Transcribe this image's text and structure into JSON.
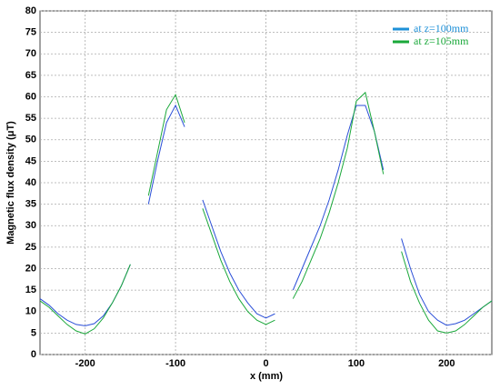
{
  "chart_data": {
    "type": "line",
    "xlabel": "x (mm)",
    "ylabel": "Magnetic flux density  (μT)",
    "x": [
      -250,
      -240,
      -230,
      -220,
      -210,
      -200,
      -190,
      -180,
      -170,
      -160,
      -150,
      -140,
      -130,
      -120,
      -110,
      -100,
      -90,
      -80,
      -70,
      -60,
      -50,
      -40,
      -30,
      -20,
      -10,
      0,
      10,
      20,
      30,
      40,
      50,
      60,
      70,
      80,
      90,
      100,
      110,
      120,
      130,
      140,
      150,
      160,
      170,
      180,
      190,
      200,
      210,
      220,
      230,
      240,
      250
    ],
    "series": [
      {
        "name": "at z=100mm",
        "color": "#2b4fd8",
        "values": [
          13,
          11.5,
          9.5,
          8,
          7,
          6.7,
          7.2,
          9,
          12,
          16,
          21,
          null,
          35,
          45,
          54,
          58,
          53,
          null,
          36,
          30,
          24,
          19,
          15,
          12,
          9.5,
          8.5,
          9.5,
          null,
          15,
          20,
          25,
          30,
          36,
          43,
          51,
          58,
          58,
          52,
          43,
          null,
          27,
          20,
          14,
          10,
          8,
          6.8,
          7.2,
          8,
          9.5,
          11,
          12.5
        ]
      },
      {
        "name": "at z=105mm",
        "color": "#1aa83a",
        "values": [
          12.5,
          11,
          9,
          7,
          5.5,
          4.8,
          6,
          8.5,
          12,
          16,
          21,
          null,
          37,
          47,
          57,
          60.5,
          54,
          null,
          34,
          28,
          22,
          17,
          13,
          10,
          8,
          7,
          8,
          null,
          13,
          17,
          22,
          27,
          33,
          40,
          48,
          59,
          61,
          52,
          42,
          null,
          24,
          17,
          12,
          8,
          5.5,
          5,
          5.5,
          7,
          9,
          11,
          12.5
        ]
      }
    ],
    "legend_colors": [
      "#1e90d8",
      "#1aa83a"
    ],
    "xlim": [
      -250,
      250
    ],
    "xticks": [
      -200,
      -100,
      0,
      100,
      200
    ],
    "ylim": [
      0,
      80
    ],
    "yticks": [
      0,
      5,
      10,
      15,
      20,
      25,
      30,
      35,
      40,
      45,
      50,
      55,
      60,
      65,
      70,
      75,
      80
    ],
    "grid": true,
    "legend": "upper right"
  }
}
